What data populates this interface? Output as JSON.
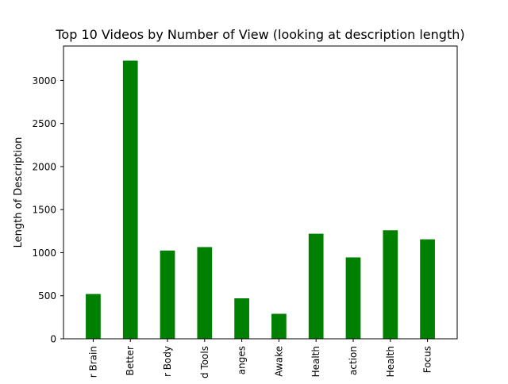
{
  "chart_data": {
    "type": "bar",
    "title": "Top 10 Videos by Number of View (looking at description length)",
    "xlabel": "",
    "ylabel": "Length of Description",
    "categories": [
      "r Brain",
      "Better",
      "r Body",
      "d Tools",
      "anges",
      "Awake",
      "Health",
      "action",
      "Health",
      "Focus"
    ],
    "values": [
      520,
      3230,
      1025,
      1065,
      470,
      290,
      1220,
      945,
      1260,
      1155
    ],
    "ylim": [
      0,
      3400
    ],
    "yticks": [
      0,
      500,
      1000,
      1500,
      2000,
      2500,
      3000
    ],
    "bar_color": "#008000",
    "grid": false,
    "legend": "none"
  }
}
